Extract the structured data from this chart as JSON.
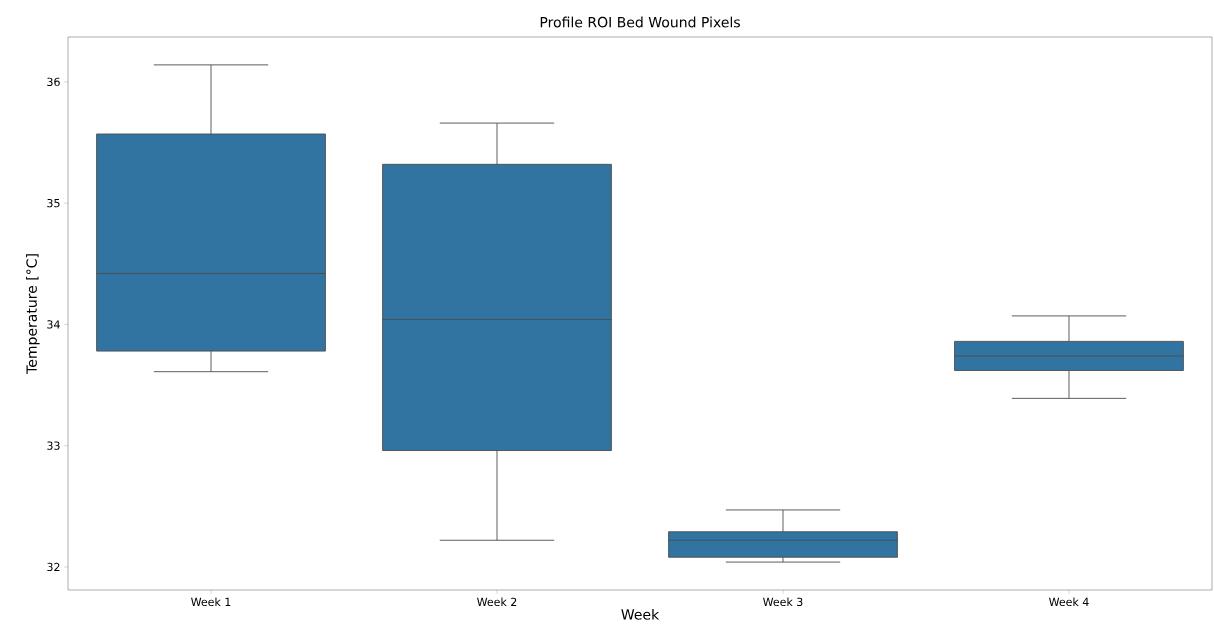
{
  "chart_data": {
    "type": "box",
    "title": "Profile ROI Bed Wound Pixels",
    "xlabel": "Week",
    "ylabel": "Temperature [°C]",
    "categories": [
      "Week 1",
      "Week 2",
      "Week 3",
      "Week 4"
    ],
    "color": "#3274a1",
    "boxes": [
      {
        "low": 33.61,
        "q1": 33.78,
        "median": 34.42,
        "q3": 35.57,
        "high": 36.14
      },
      {
        "low": 32.22,
        "q1": 32.96,
        "median": 34.04,
        "q3": 35.32,
        "high": 35.66
      },
      {
        "low": 32.04,
        "q1": 32.08,
        "median": 32.22,
        "q3": 32.29,
        "high": 32.47
      },
      {
        "low": 33.39,
        "q1": 33.62,
        "median": 33.74,
        "q3": 33.86,
        "high": 34.07
      }
    ],
    "ylim": [
      31.81,
      36.37
    ],
    "yticks": [
      32,
      33,
      34,
      35,
      36
    ],
    "grid": false
  }
}
